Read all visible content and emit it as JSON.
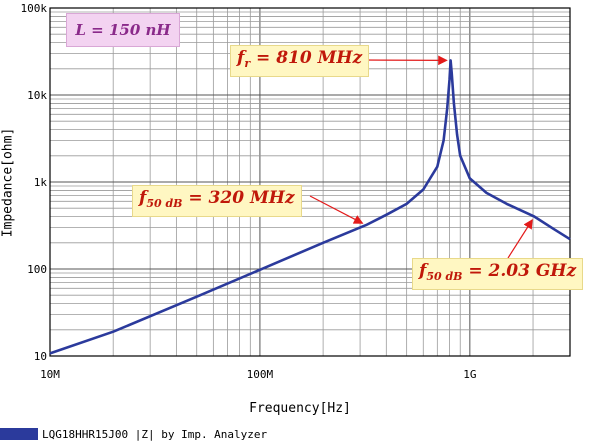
{
  "chart_data": {
    "type": "line",
    "xlabel": "Frequency[Hz]",
    "ylabel": "Impedance[ohm]",
    "xscale": "log",
    "yscale": "log",
    "xlim": [
      10000000,
      3000000000
    ],
    "ylim": [
      10,
      100000
    ],
    "x_ticks": [
      {
        "value": 10000000,
        "label": "10M"
      },
      {
        "value": 100000000,
        "label": "100M"
      },
      {
        "value": 1000000000,
        "label": "1G"
      }
    ],
    "y_ticks": [
      {
        "value": 10,
        "label": "10"
      },
      {
        "value": 100,
        "label": "100"
      },
      {
        "value": 1000,
        "label": "1k"
      },
      {
        "value": 10000,
        "label": "10k"
      },
      {
        "value": 100000,
        "label": "100k"
      }
    ],
    "grid": true,
    "series": [
      {
        "name": "LQG18HHR15J00 |Z| by Imp. Analyzer",
        "color": "#2b3a9c",
        "x": [
          10000000,
          20000000,
          50000000,
          100000000,
          200000000,
          320000000,
          400000000,
          500000000,
          600000000,
          700000000,
          750000000,
          780000000,
          800000000,
          810000000,
          820000000,
          840000000,
          870000000,
          900000000,
          1000000000,
          1200000000,
          1500000000,
          2030000000,
          2500000000,
          3000000000
        ],
        "y": [
          10.7,
          19,
          48,
          98,
          200,
          320,
          420,
          560,
          820,
          1500,
          3000,
          7000,
          15000,
          25000,
          18000,
          8000,
          3500,
          2000,
          1100,
          750,
          560,
          400,
          290,
          220
        ]
      }
    ],
    "annotations": [
      {
        "parts": [
          "f",
          "r",
          " = 810 MHz"
        ],
        "x": 810000000,
        "y": 25000
      },
      {
        "parts": [
          "f",
          "50 dB",
          " = 320 MHz"
        ],
        "x": 320000000,
        "y": 320
      },
      {
        "parts": [
          "f",
          "50 dB",
          " = 2.03 GHz"
        ],
        "x": 2030000000,
        "y": 400
      }
    ],
    "param_label": "L = 150 nH",
    "legend": {
      "label": "LQG18HHR15J00 |Z| by Imp. Analyzer",
      "position": "bottom-left"
    }
  }
}
